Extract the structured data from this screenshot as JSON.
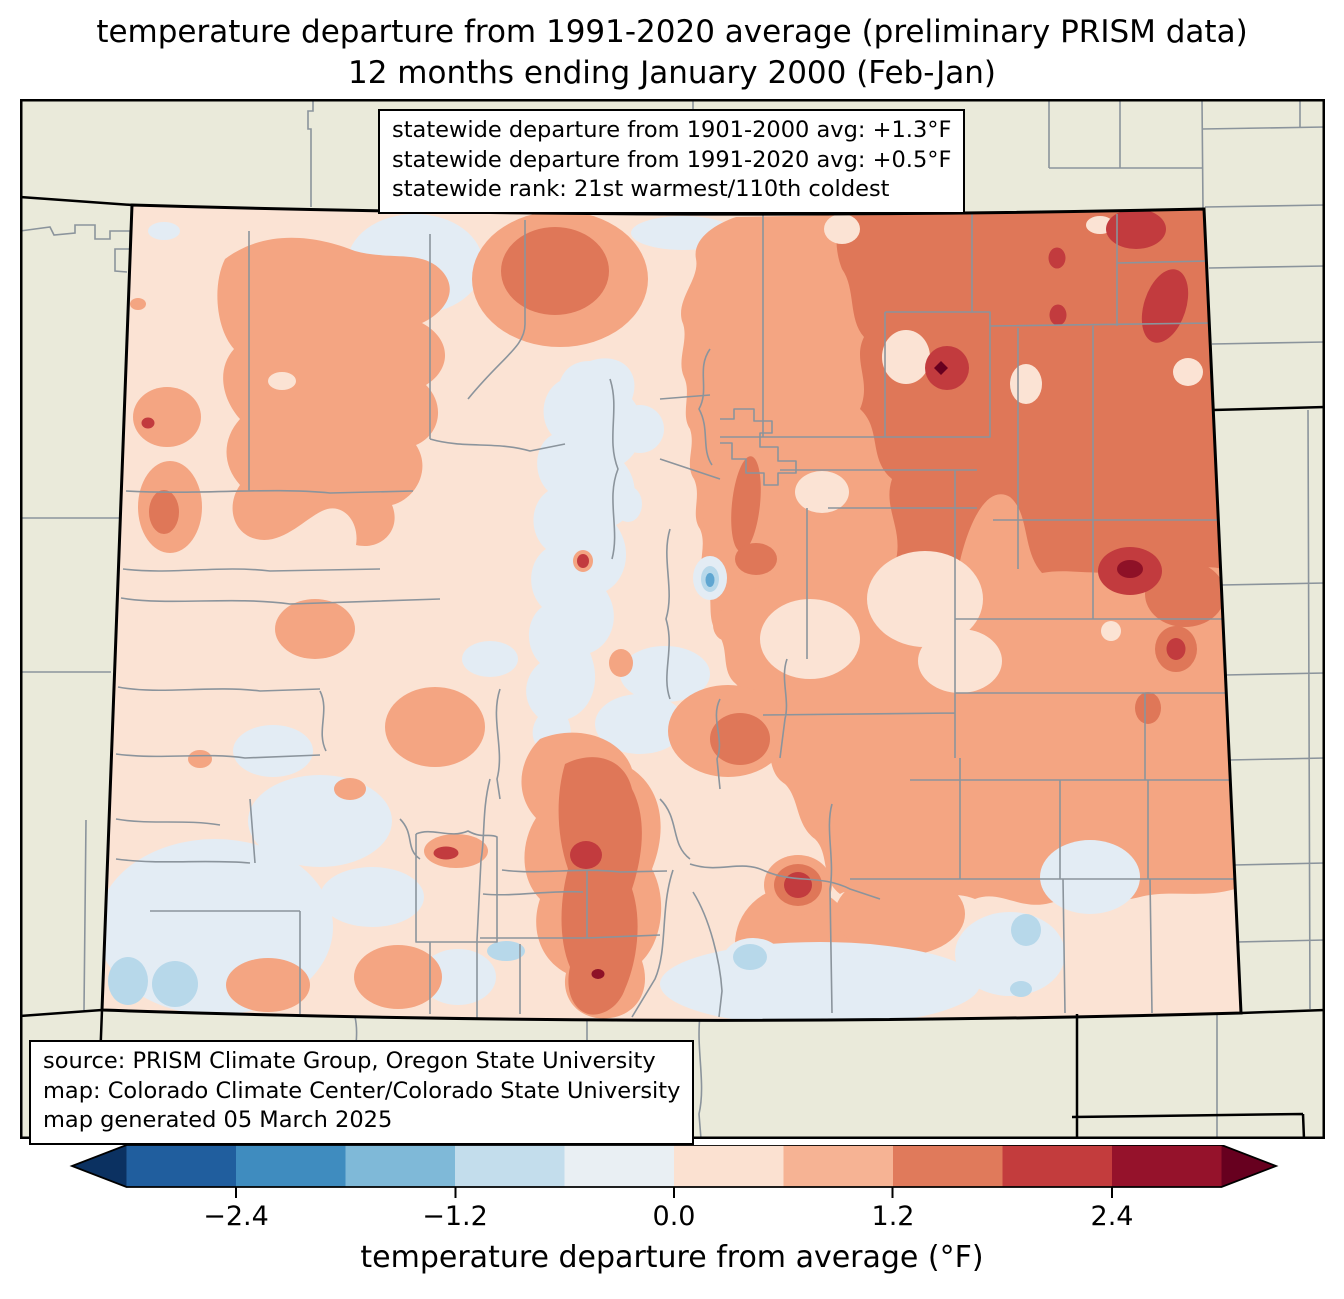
{
  "title": {
    "line1": "temperature departure from 1991-2020 average (preliminary PRISM data)",
    "line2": "12 months ending January 2000 (Feb-Jan)"
  },
  "stats_box": {
    "lines": [
      "statewide departure from 1901-2000 avg: +1.3°F",
      "statewide departure from 1991-2020 avg: +0.5°F",
      "statewide rank: 21st warmest/110th coldest"
    ]
  },
  "source_box": {
    "lines": [
      "source: PRISM Climate Group, Oregon State University",
      "map: Colorado Climate Center/Colorado State University",
      "map generated 05 March 2025"
    ]
  },
  "colorbar": {
    "label": "temperature departure from average (°F)",
    "tick_labels": [
      "−2.4",
      "−1.2",
      "0.0",
      "1.2",
      "2.4"
    ],
    "boundaries": [
      -3.0,
      -2.4,
      -1.8,
      -1.2,
      -0.6,
      0.0,
      0.6,
      1.2,
      1.8,
      2.4,
      3.0
    ],
    "segment_colors": [
      "#205E9E",
      "#3F8CBF",
      "#7FB9D8",
      "#C3DDEC",
      "#E9EFF3",
      "#FBE1D1",
      "#F6B394",
      "#E07A5B",
      "#C33C3D",
      "#95122B"
    ],
    "under_color": "#0B3161",
    "over_color": "#67001F"
  },
  "map": {
    "region": "Colorado",
    "palette": {
      "background": "#EAEADA",
      "county_line": "#8B949C",
      "state_line": "#000000",
      "base": "#FBE3D4",
      "pale_blue": "#E3ECF4",
      "light_blue": "#B7D8EA",
      "mid_blue": "#5FA6D1",
      "salmon": "#F4A582",
      "medium": "#DF7758",
      "red": "#C23B3E",
      "dark_red": "#8E1127",
      "maroon": "#67001F"
    }
  }
}
